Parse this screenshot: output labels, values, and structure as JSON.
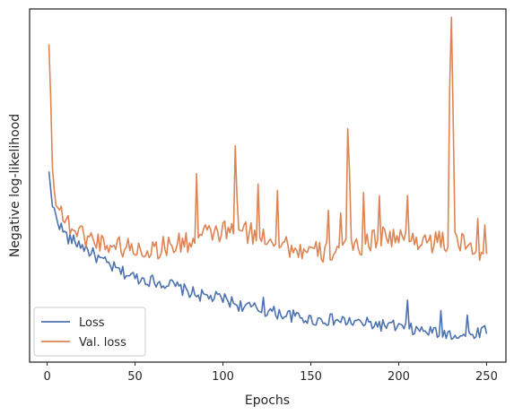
{
  "chart_data": {
    "type": "line",
    "title": "",
    "xlabel": "Epochs",
    "ylabel": "Negative log-likelihood",
    "xlim": [
      -10,
      261
    ],
    "ylim": [
      0,
      100
    ],
    "xticks": [
      0,
      50,
      100,
      150,
      200,
      250
    ],
    "yticks_shown": false,
    "grid": false,
    "legend_placement": "lower-left",
    "series": [
      {
        "name": "Loss",
        "color": "#4c72b0",
        "keypoints": [
          [
            1,
            54
          ],
          [
            3,
            44
          ],
          [
            8,
            38
          ],
          [
            12,
            35
          ],
          [
            20,
            33
          ],
          [
            30,
            29
          ],
          [
            40,
            26
          ],
          [
            50,
            24
          ],
          [
            60,
            23
          ],
          [
            70,
            22
          ],
          [
            80,
            20
          ],
          [
            90,
            18.5
          ],
          [
            100,
            18
          ],
          [
            110,
            16
          ],
          [
            120,
            15
          ],
          [
            130,
            14
          ],
          [
            140,
            13
          ],
          [
            150,
            12
          ],
          [
            160,
            12
          ],
          [
            170,
            11.5
          ],
          [
            180,
            11
          ],
          [
            190,
            10.5
          ],
          [
            200,
            10
          ],
          [
            210,
            9
          ],
          [
            220,
            8.5
          ],
          [
            230,
            8
          ],
          [
            240,
            7.5
          ],
          [
            250,
            9.5
          ]
        ],
        "noise_amplitude": 1.8,
        "spikes": [
          [
            123,
            3.5
          ],
          [
            205,
            7
          ],
          [
            224,
            4.5
          ],
          [
            239,
            5
          ]
        ]
      },
      {
        "name": "Val. loss",
        "color": "#dd8452",
        "keypoints": [
          [
            1,
            90
          ],
          [
            2,
            75
          ],
          [
            3,
            55
          ],
          [
            4,
            48
          ],
          [
            6,
            46
          ],
          [
            10,
            40
          ],
          [
            20,
            36
          ],
          [
            30,
            34
          ],
          [
            40,
            33
          ],
          [
            50,
            32
          ],
          [
            60,
            32
          ],
          [
            70,
            33
          ],
          [
            80,
            34
          ],
          [
            90,
            36
          ],
          [
            100,
            37
          ],
          [
            110,
            37
          ],
          [
            120,
            36
          ],
          [
            130,
            35
          ],
          [
            140,
            32
          ],
          [
            150,
            31
          ],
          [
            160,
            31
          ],
          [
            170,
            33
          ],
          [
            180,
            33
          ],
          [
            190,
            36
          ],
          [
            200,
            35
          ],
          [
            210,
            35
          ],
          [
            220,
            34
          ],
          [
            230,
            34
          ],
          [
            240,
            33
          ],
          [
            250,
            31
          ]
        ],
        "noise_amplitude": 3.2,
        "spikes": [
          [
            85,
            17
          ],
          [
            107,
            22
          ],
          [
            108,
            12
          ],
          [
            120,
            12
          ],
          [
            131,
            14
          ],
          [
            160,
            10
          ],
          [
            167,
            12
          ],
          [
            171,
            30
          ],
          [
            172,
            18
          ],
          [
            180,
            16
          ],
          [
            189,
            14
          ],
          [
            205,
            11
          ],
          [
            229,
            45
          ],
          [
            230,
            62
          ],
          [
            231,
            35
          ],
          [
            245,
            9
          ],
          [
            249,
            10
          ]
        ]
      }
    ]
  }
}
